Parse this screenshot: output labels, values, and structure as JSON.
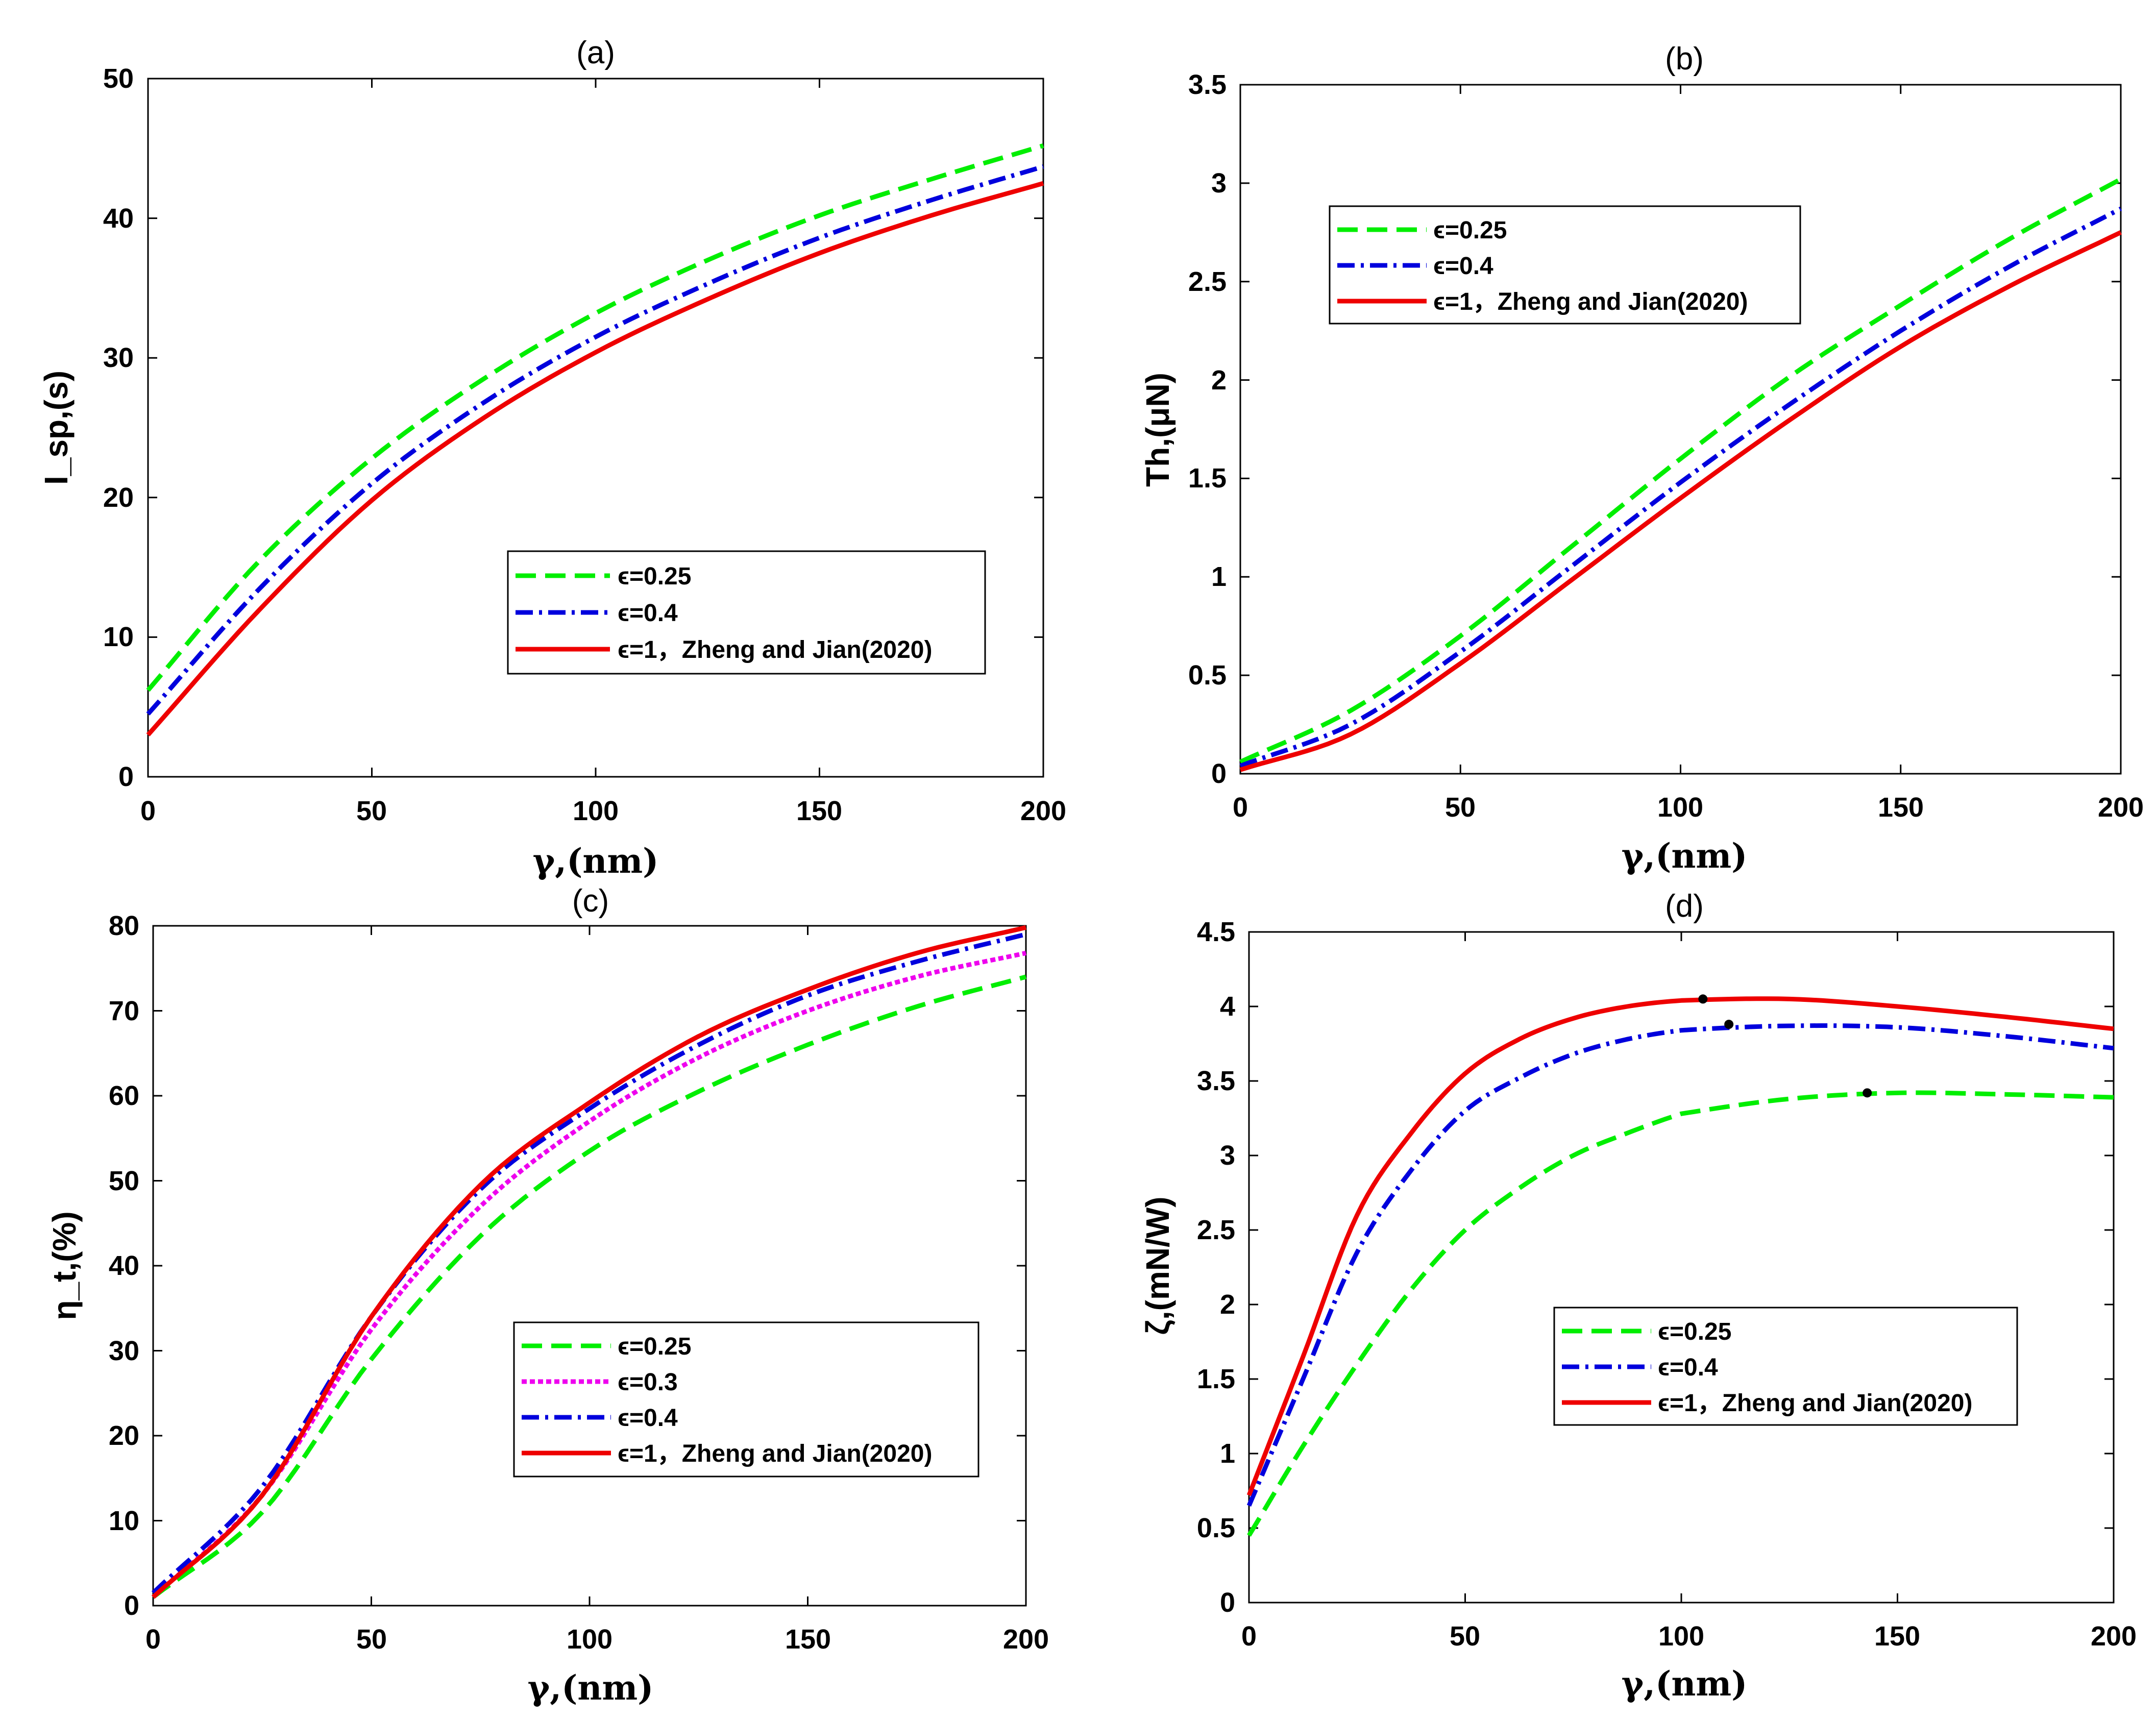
{
  "chart_data": [
    {
      "id": "a",
      "type": "line",
      "title": "(a)",
      "xlabel": "γ,(nm)",
      "ylabel": "I_sp,(s)",
      "xlim": [
        0,
        200
      ],
      "ylim": [
        0,
        50
      ],
      "xticks": [
        0,
        50,
        100,
        150,
        200
      ],
      "yticks": [
        0,
        10,
        20,
        30,
        40,
        50
      ],
      "ytick_labels": [
        "0",
        "10",
        "20",
        "30",
        "40",
        "50"
      ],
      "legend_position": "center-right",
      "series": [
        {
          "name": "ϵ=0.25",
          "color": "#00ee00",
          "dash": "dash",
          "x": [
            0,
            25,
            50,
            75,
            100,
            125,
            150,
            175,
            200
          ],
          "y": [
            6.2,
            15.5,
            22.8,
            28.5,
            33.2,
            37.0,
            40.2,
            42.8,
            45.2
          ]
        },
        {
          "name": "ϵ=0.4",
          "color": "#0000dd",
          "dash": "dashdot",
          "x": [
            0,
            25,
            50,
            75,
            100,
            125,
            150,
            175,
            200
          ],
          "y": [
            4.5,
            13.5,
            21.0,
            26.8,
            31.5,
            35.3,
            38.6,
            41.3,
            43.7
          ]
        },
        {
          "name": "ϵ=1，Zheng and Jian(2020)",
          "color": "#ee0000",
          "dash": "solid",
          "x": [
            0,
            25,
            50,
            75,
            100,
            125,
            150,
            175,
            200
          ],
          "y": [
            3.0,
            12.0,
            19.8,
            25.7,
            30.4,
            34.2,
            37.5,
            40.2,
            42.5
          ]
        }
      ]
    },
    {
      "id": "b",
      "type": "line",
      "title": "(b)",
      "xlabel": "γ,(nm)",
      "ylabel": "Th,(μN)",
      "xlim": [
        0,
        200
      ],
      "ylim": [
        0,
        3.5
      ],
      "xticks": [
        0,
        50,
        100,
        150,
        200
      ],
      "yticks": [
        0,
        0.5,
        1,
        1.5,
        2,
        2.5,
        3,
        3.5
      ],
      "ytick_labels": [
        "0",
        "0.5",
        "1",
        "1.5",
        "2",
        "2.5",
        "3",
        "3.5"
      ],
      "legend_position": "top-left",
      "series": [
        {
          "name": "ϵ=0.25",
          "color": "#00ee00",
          "dash": "dash",
          "x": [
            0,
            25,
            50,
            75,
            100,
            125,
            150,
            175,
            200
          ],
          "y": [
            0.06,
            0.32,
            0.7,
            1.15,
            1.6,
            2.02,
            2.38,
            2.72,
            3.02
          ]
        },
        {
          "name": "ϵ=0.4",
          "color": "#0000dd",
          "dash": "dashdot",
          "x": [
            0,
            25,
            50,
            75,
            100,
            125,
            150,
            175,
            200
          ],
          "y": [
            0.04,
            0.25,
            0.62,
            1.05,
            1.48,
            1.88,
            2.25,
            2.58,
            2.87
          ]
        },
        {
          "name": "ϵ=1，Zheng and Jian(2020)",
          "color": "#ee0000",
          "dash": "solid",
          "x": [
            0,
            25,
            50,
            75,
            100,
            125,
            150,
            175,
            200
          ],
          "y": [
            0.02,
            0.2,
            0.56,
            0.98,
            1.4,
            1.8,
            2.17,
            2.48,
            2.75
          ]
        }
      ]
    },
    {
      "id": "c",
      "type": "line",
      "title": "(c)",
      "xlabel": "γ,(nm)",
      "ylabel": "η_t,(%)",
      "xlim": [
        0,
        200
      ],
      "ylim": [
        0,
        80
      ],
      "xticks": [
        0,
        50,
        100,
        150,
        200
      ],
      "yticks": [
        0,
        10,
        20,
        30,
        40,
        50,
        60,
        70,
        80
      ],
      "ytick_labels": [
        "0",
        "10",
        "20",
        "30",
        "40",
        "50",
        "60",
        "70",
        "80"
      ],
      "legend_position": "center-right",
      "series": [
        {
          "name": "ϵ=0.25",
          "color": "#00ee00",
          "dash": "dash",
          "x": [
            0,
            25,
            50,
            75,
            100,
            125,
            150,
            175,
            200
          ],
          "y": [
            1.0,
            11.0,
            29.0,
            43.5,
            53.5,
            60.5,
            66.0,
            70.5,
            74.0
          ]
        },
        {
          "name": "ϵ=0.3",
          "color": "#ee00ee",
          "dash": "dot",
          "x": [
            0,
            25,
            50,
            75,
            100,
            125,
            150,
            175,
            200
          ],
          "y": [
            1.0,
            13.0,
            32.5,
            47.0,
            57.0,
            64.5,
            70.0,
            74.0,
            76.8
          ]
        },
        {
          "name": "ϵ=0.4",
          "color": "#0000dd",
          "dash": "dashdot",
          "x": [
            0,
            25,
            50,
            75,
            100,
            125,
            150,
            175,
            200
          ],
          "y": [
            1.5,
            14.0,
            34.0,
            49.0,
            58.5,
            66.0,
            71.8,
            75.8,
            79.0
          ]
        },
        {
          "name": "ϵ=1，Zheng and Jian(2020)",
          "color": "#ee0000",
          "dash": "solid",
          "x": [
            0,
            25,
            50,
            75,
            100,
            125,
            150,
            175,
            200
          ],
          "y": [
            1.0,
            13.0,
            34.0,
            49.5,
            59.2,
            67.0,
            72.5,
            76.8,
            79.8
          ]
        }
      ]
    },
    {
      "id": "d",
      "type": "line",
      "title": "(d)",
      "xlabel": "γ,(nm)",
      "ylabel": "ζ,(mN/W)",
      "xlim": [
        0,
        200
      ],
      "ylim": [
        0,
        4.5
      ],
      "xticks": [
        0,
        50,
        100,
        150,
        200
      ],
      "yticks": [
        0,
        0.5,
        1,
        1.5,
        2,
        2.5,
        3,
        3.5,
        4,
        4.5
      ],
      "ytick_labels": [
        "0",
        "0.5",
        "1",
        "1.5",
        "2",
        "2.5",
        "3",
        "3.5",
        "4",
        "4.5"
      ],
      "legend_position": "center-right",
      "series": [
        {
          "name": "ϵ=0.25",
          "color": "#00ee00",
          "dash": "dash",
          "x": [
            0,
            12.5,
            25,
            37.5,
            50,
            62.5,
            75,
            87.5,
            100,
            125,
            150,
            175,
            200
          ],
          "y": [
            0.45,
            1.05,
            1.6,
            2.1,
            2.5,
            2.78,
            3.0,
            3.15,
            3.28,
            3.38,
            3.42,
            3.41,
            3.39
          ]
        },
        {
          "name": "ϵ=0.4",
          "color": "#0000dd",
          "dash": "dashdot",
          "x": [
            0,
            12.5,
            25,
            37.5,
            50,
            62.5,
            75,
            87.5,
            100,
            125,
            150,
            175,
            200
          ],
          "y": [
            0.65,
            1.5,
            2.35,
            2.9,
            3.3,
            3.52,
            3.68,
            3.78,
            3.84,
            3.87,
            3.86,
            3.8,
            3.72
          ]
        },
        {
          "name": "ϵ=1，Zheng and Jian(2020)",
          "color": "#ee0000",
          "dash": "solid",
          "x": [
            0,
            12.5,
            25,
            37.5,
            50,
            62.5,
            75,
            87.5,
            100,
            125,
            150,
            175,
            200
          ],
          "y": [
            0.72,
            1.65,
            2.6,
            3.15,
            3.55,
            3.78,
            3.92,
            4.0,
            4.04,
            4.05,
            4.0,
            3.93,
            3.85
          ]
        }
      ],
      "markers": [
        {
          "x": 105,
          "y": 4.05
        },
        {
          "x": 111,
          "y": 3.88
        },
        {
          "x": 143,
          "y": 3.42
        }
      ]
    }
  ]
}
